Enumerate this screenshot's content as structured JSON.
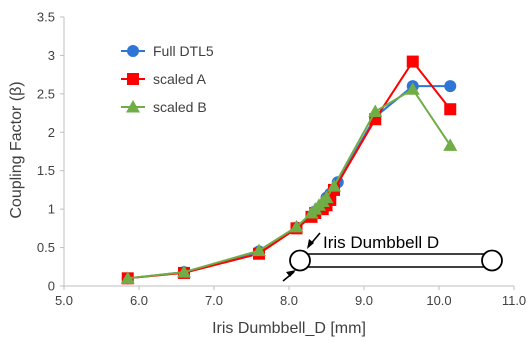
{
  "chart_data": {
    "type": "scatter",
    "xlabel": "Iris Dumbbell_D [mm]",
    "ylabel": "Coupling Factor (β)",
    "xlim": [
      5.0,
      11.0
    ],
    "ylim": [
      0,
      3.5
    ],
    "xticks": [
      "5.0",
      "6.0",
      "7.0",
      "8.0",
      "9.0",
      "10.0",
      "11.0"
    ],
    "yticks": [
      "0",
      "0.5",
      "1",
      "1.5",
      "2",
      "2.5",
      "3",
      "3.5"
    ],
    "grid": false,
    "legend": "top-left",
    "series": [
      {
        "name": "Full DTL5",
        "color": "#2E75D6",
        "marker": "circle",
        "x": [
          5.85,
          6.6,
          7.6,
          8.1,
          8.35,
          8.45,
          8.5,
          8.55,
          8.65,
          9.15,
          9.65,
          10.15
        ],
        "y": [
          0.1,
          0.18,
          0.45,
          0.76,
          0.97,
          1.05,
          1.15,
          1.2,
          1.35,
          2.2,
          2.6,
          2.6
        ]
      },
      {
        "name": "scaled A",
        "color": "#FF0000",
        "marker": "square",
        "x": [
          5.85,
          6.6,
          7.6,
          8.1,
          8.3,
          8.35,
          8.45,
          8.5,
          8.55,
          8.6,
          9.15,
          9.65,
          10.15
        ],
        "y": [
          0.1,
          0.17,
          0.42,
          0.75,
          0.9,
          0.95,
          1.0,
          1.05,
          1.12,
          1.25,
          2.17,
          2.92,
          2.3
        ]
      },
      {
        "name": "scaled B",
        "color": "#70AD47",
        "marker": "triangle",
        "x": [
          5.85,
          6.6,
          7.6,
          8.1,
          8.3,
          8.35,
          8.4,
          8.45,
          8.5,
          8.6,
          9.15,
          9.65,
          10.15
        ],
        "y": [
          0.1,
          0.18,
          0.46,
          0.77,
          0.95,
          1.0,
          1.05,
          1.1,
          1.15,
          1.3,
          2.27,
          2.56,
          1.83
        ]
      }
    ],
    "annotation": {
      "label": "Iris Dumbbell D"
    }
  }
}
